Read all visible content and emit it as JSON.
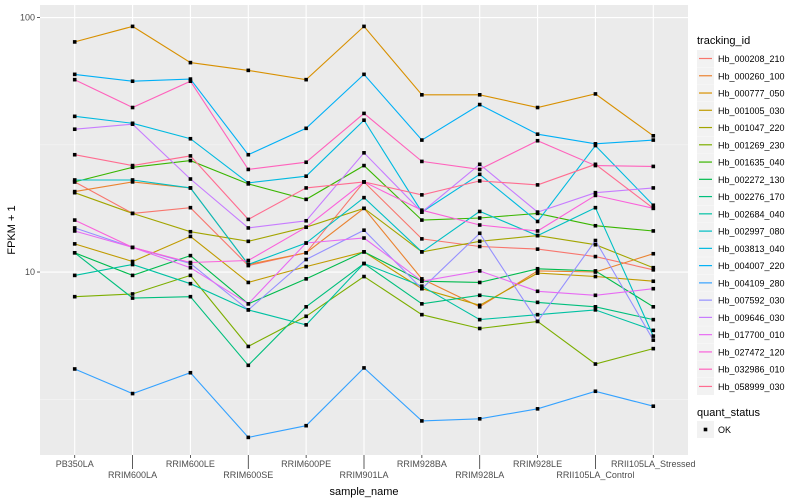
{
  "chart_data": {
    "type": "line",
    "title": "",
    "xlabel": "sample_name",
    "ylabel": "FPKM + 1",
    "y_scale": "log10",
    "ylim": [
      1.91,
      112
    ],
    "y_ticks": [
      10,
      100
    ],
    "grid": true,
    "legend_placement": "right",
    "categories": [
      "PB350LA",
      "RRIM600LA",
      "RRIM600LE",
      "RRIM600SE",
      "RRIM600PE",
      "RRIM901LA",
      "RRIM928BA",
      "RRIM928LA",
      "RRIM928LE",
      "RRII105LA_Control",
      "RRII105LA_Stressed"
    ],
    "legend_title": "tracking_id",
    "series": [
      {
        "name": "Hb_000208_210",
        "color": "#F8766D",
        "values": [
          22.6,
          17.0,
          17.9,
          10.6,
          11.9,
          22.6,
          13.5,
          12.6,
          12.3,
          11.5,
          10.2
        ]
      },
      {
        "name": "Hb_000260_100",
        "color": "#EA8331",
        "values": [
          20.7,
          22.6,
          21.4,
          10.7,
          11.9,
          17.8,
          9.4,
          7.3,
          10.1,
          10.0,
          11.8
        ]
      },
      {
        "name": "Hb_000777_050",
        "color": "#D89000",
        "values": [
          80.2,
          92.3,
          66.5,
          62.0,
          57.0,
          92.3,
          49.7,
          49.7,
          44.3,
          50.1,
          34.3
        ]
      },
      {
        "name": "Hb_001005_030",
        "color": "#C09B00",
        "values": [
          12.9,
          11.0,
          13.8,
          9.1,
          10.5,
          12.0,
          8.6,
          7.4,
          9.9,
          9.6,
          9.2
        ]
      },
      {
        "name": "Hb_001047_220",
        "color": "#A3A500",
        "values": [
          20.5,
          17.0,
          14.4,
          13.2,
          15.0,
          17.8,
          12.0,
          13.2,
          13.9,
          12.8,
          10.4
        ]
      },
      {
        "name": "Hb_001269_230",
        "color": "#7CAE00",
        "values": [
          8.0,
          8.2,
          9.7,
          5.1,
          6.7,
          9.6,
          6.8,
          6.0,
          6.4,
          4.35,
          5.0
        ]
      },
      {
        "name": "Hb_001635_040",
        "color": "#39B600",
        "values": [
          22.6,
          25.8,
          27.4,
          22.2,
          19.3,
          26.2,
          16.0,
          16.3,
          17.0,
          15.2,
          14.5
        ]
      },
      {
        "name": "Hb_002272_130",
        "color": "#00BB4E",
        "values": [
          11.9,
          9.7,
          11.6,
          7.5,
          9.4,
          12.0,
          9.2,
          9.1,
          10.3,
          10.1,
          7.3
        ]
      },
      {
        "name": "Hb_002276_170",
        "color": "#00BF7D",
        "values": [
          11.9,
          7.9,
          8.0,
          4.3,
          7.3,
          10.8,
          7.5,
          8.1,
          7.6,
          7.3,
          6.5
        ]
      },
      {
        "name": "Hb_002684_040",
        "color": "#00C1A3",
        "values": [
          9.7,
          10.7,
          9.0,
          7.1,
          6.2,
          10.8,
          8.8,
          6.5,
          6.8,
          7.1,
          5.9
        ]
      },
      {
        "name": "Hb_002997_080",
        "color": "#00BFC4",
        "values": [
          23.0,
          23.0,
          21.4,
          10.7,
          13.0,
          19.6,
          12.0,
          17.3,
          13.9,
          17.9,
          5.6
        ]
      },
      {
        "name": "Hb_003813_040",
        "color": "#00BAE0",
        "values": [
          40.9,
          38.4,
          33.4,
          22.4,
          23.8,
          39.5,
          17.2,
          24.2,
          15.8,
          31.4,
          18.3
        ]
      },
      {
        "name": "Hb_004007_220",
        "color": "#00B0F6",
        "values": [
          59.8,
          56.2,
          57.3,
          28.9,
          36.7,
          59.8,
          33.0,
          45.5,
          34.8,
          31.9,
          33.0
        ]
      },
      {
        "name": "Hb_004109_280",
        "color": "#35A2FF",
        "values": [
          4.16,
          3.33,
          4.02,
          2.24,
          2.49,
          4.2,
          2.6,
          2.65,
          2.9,
          3.4,
          2.97
        ]
      },
      {
        "name": "Hb_007592_030",
        "color": "#9590FF",
        "values": [
          14.9,
          12.5,
          10.8,
          7.1,
          11.2,
          14.6,
          8.6,
          14.2,
          6.4,
          13.3,
          5.4
        ]
      },
      {
        "name": "Hb_009646_030",
        "color": "#C77CFF",
        "values": [
          36.4,
          38.1,
          23.2,
          14.9,
          15.9,
          29.4,
          17.2,
          26.5,
          17.2,
          20.5,
          21.4
        ]
      },
      {
        "name": "Hb_017700_010",
        "color": "#E76BF3",
        "values": [
          14.5,
          12.5,
          10.4,
          7.5,
          13.0,
          13.6,
          9.2,
          10.1,
          8.4,
          8.1,
          8.6
        ]
      },
      {
        "name": "Hb_027472_120",
        "color": "#FA62DB",
        "values": [
          16.0,
          12.5,
          10.9,
          11.1,
          15.0,
          22.6,
          17.5,
          15.3,
          14.5,
          20.0,
          17.8
        ]
      },
      {
        "name": "Hb_032986_010",
        "color": "#FF62BC",
        "values": [
          57.0,
          44.3,
          56.2,
          25.3,
          27.0,
          42.0,
          27.2,
          25.3,
          32.8,
          26.2,
          26.0
        ]
      },
      {
        "name": "Hb_058999_030",
        "color": "#FF6C90",
        "values": [
          28.9,
          26.2,
          28.6,
          16.1,
          21.4,
          22.6,
          20.1,
          22.8,
          22.0,
          26.5,
          17.8
        ]
      }
    ],
    "shape_legend": {
      "title": "quant_status",
      "items": [
        {
          "label": "OK",
          "shape": "square",
          "color": "#000000"
        }
      ]
    }
  }
}
